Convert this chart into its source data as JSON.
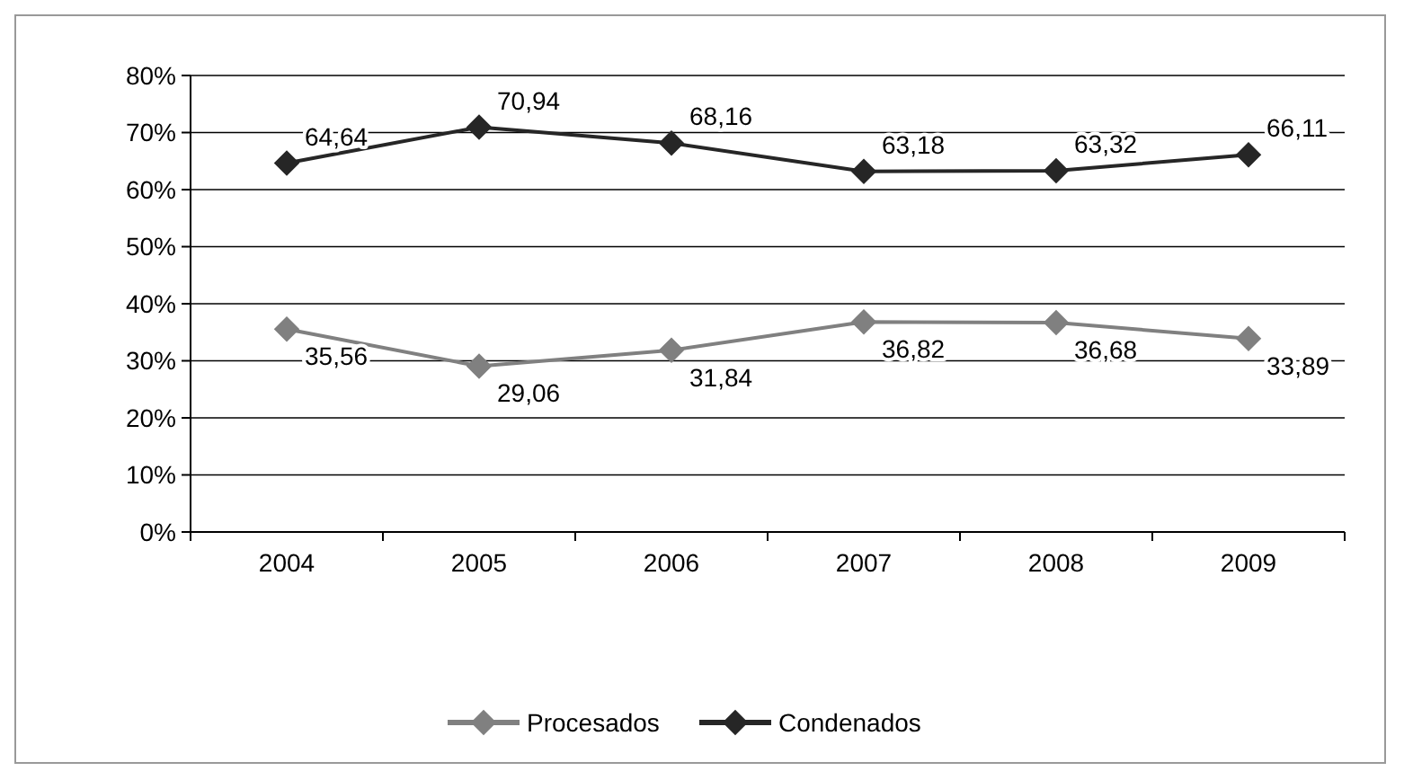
{
  "chart_data": {
    "type": "line",
    "categories": [
      "2004",
      "2005",
      "2006",
      "2007",
      "2008",
      "2009"
    ],
    "series": [
      {
        "name": "Procesados",
        "color": "#808080",
        "values": [
          35.56,
          29.06,
          31.84,
          36.82,
          36.68,
          33.89
        ],
        "value_labels": [
          "35,56",
          "29,06",
          "31,84",
          "36,82",
          "36,68",
          "33,89"
        ]
      },
      {
        "name": "Condenados",
        "color": "#262626",
        "values": [
          64.64,
          70.94,
          68.16,
          63.18,
          63.32,
          66.11
        ],
        "value_labels": [
          "64,64",
          "70,94",
          "68,16",
          "63,18",
          "63,32",
          "66,11"
        ]
      }
    ],
    "ylim": [
      0,
      80
    ],
    "yticks": [
      {
        "value": 0,
        "label": "0%"
      },
      {
        "value": 10,
        "label": "10%"
      },
      {
        "value": 20,
        "label": "20%"
      },
      {
        "value": 30,
        "label": "30%"
      },
      {
        "value": 40,
        "label": "40%"
      },
      {
        "value": 50,
        "label": "50%"
      },
      {
        "value": 60,
        "label": "60%"
      },
      {
        "value": 70,
        "label": "70%"
      },
      {
        "value": 80,
        "label": "80%"
      }
    ],
    "grid": "y",
    "legend": "bottom",
    "marker": "diamond",
    "line_style": "solid"
  }
}
